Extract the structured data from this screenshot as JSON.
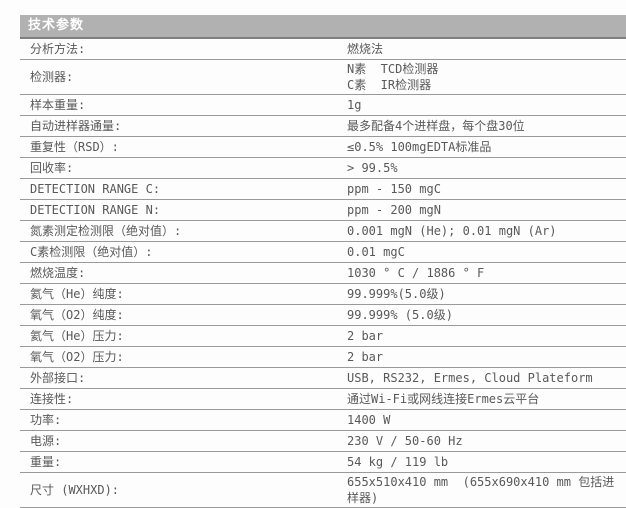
{
  "header": {
    "title": "技术参数"
  },
  "colors": {
    "header_background": "#b1b1b1",
    "header_text": "#ffffff",
    "row_divider": "#9a9a9a",
    "body_text": "#595959"
  },
  "table": {
    "rows": [
      {
        "label": "分析方法:",
        "value": "燃烧法"
      },
      {
        "label": "检测器:",
        "value": "N素  TCD检测器\nC素  IR检测器"
      },
      {
        "label": "样本重量:",
        "value": "1g"
      },
      {
        "label": "自动进样器通量:",
        "value": "最多配备4个进样盘，每个盘30位"
      },
      {
        "label": "重复性（RSD）:",
        "value": "≤0.5% 100mgEDTA标准品"
      },
      {
        "label": "回收率:",
        "value": "> 99.5%"
      },
      {
        "label": "DETECTION RANGE C:",
        "value": "ppm - 150 mgC"
      },
      {
        "label": "DETECTION RANGE N:",
        "value": "ppm - 200 mgN"
      },
      {
        "label": "氮素测定检测限（绝对值）:",
        "value": "0.001 mgN (He); 0.01 mgN (Ar)"
      },
      {
        "label": "C素检测限（绝对值）:",
        "value": "0.01 mgC"
      },
      {
        "label": "燃烧温度:",
        "value": "1030 ° C / 1886 ° F"
      },
      {
        "label": "氦气（He）纯度:",
        "value": "99.999%(5.0级)"
      },
      {
        "label": "氧气（O2）纯度:",
        "value": "99.999% (5.0级)"
      },
      {
        "label": "氦气（He）压力:",
        "value": "2 bar"
      },
      {
        "label": "氧气（O2）压力:",
        "value": "2 bar"
      },
      {
        "label": "外部接口:",
        "value": "USB, RS232, Ermes, Cloud Plateform"
      },
      {
        "label": "连接性:",
        "value": "通过Wi-Fi或网线连接Ermes云平台"
      },
      {
        "label": "功率:",
        "value": "1400 W"
      },
      {
        "label": "电源:",
        "value": "230 V / 50-60 Hz"
      },
      {
        "label": "重量:",
        "value": "54 kg / 119 lb"
      },
      {
        "label": "尺寸 (WXHXD):",
        "value": "655x510x410 mm  (655x690x410 mm 包括进样器)"
      }
    ]
  }
}
